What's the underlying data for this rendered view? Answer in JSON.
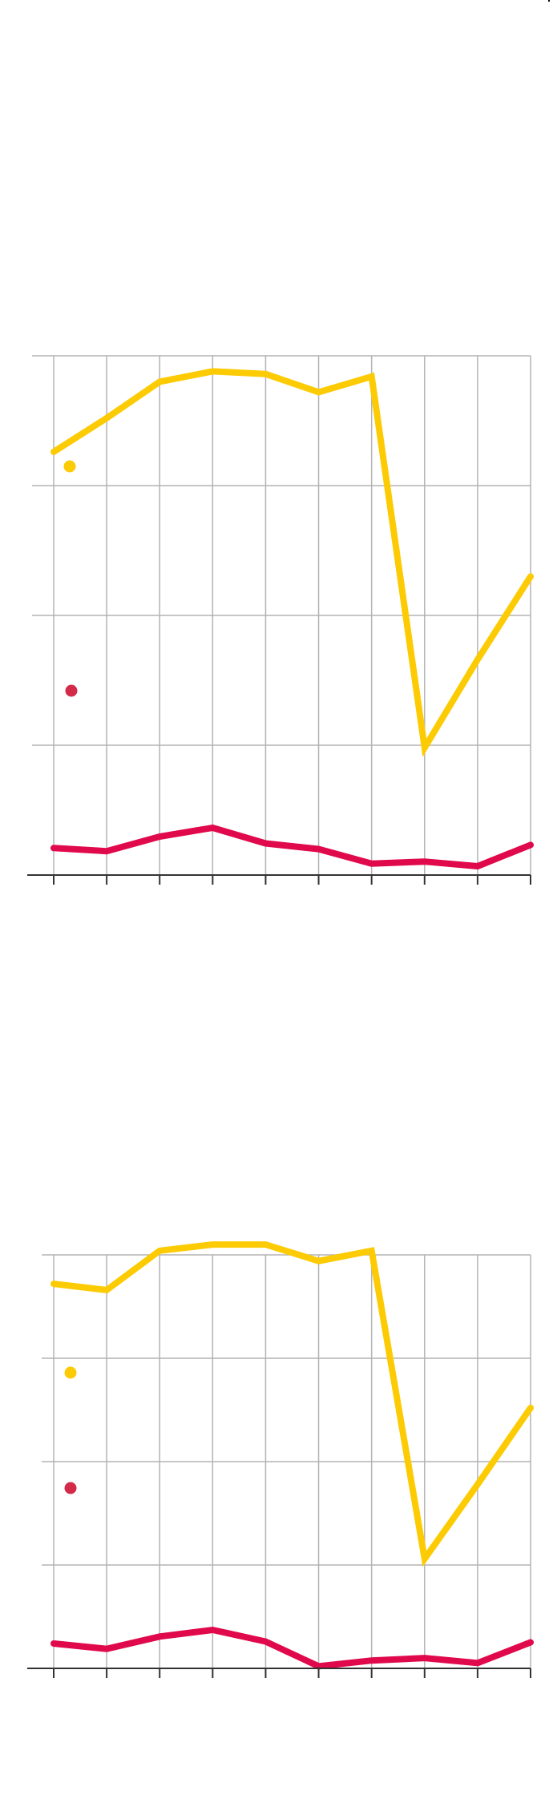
{
  "colors": {
    "series_a": "#fccb04",
    "series_b": "#e0094b",
    "legend_b": "#d42a4a",
    "grid": "#b3b3b3",
    "axis": "#333333"
  },
  "chart_data": [
    {
      "type": "line",
      "title": "",
      "xlabel": "",
      "ylabel": "",
      "x": [
        1,
        2,
        3,
        4,
        5,
        6,
        7,
        8,
        9,
        10
      ],
      "ylim": [
        0,
        100
      ],
      "grid": true,
      "legend": "left",
      "series": [
        {
          "values": [
            81.5,
            88,
            95,
            97,
            96.5,
            93,
            96,
            24.5,
            41.5,
            57.5
          ]
        },
        {
          "values": [
            5.2,
            4.6,
            7.4,
            9.1,
            6.1,
            5,
            2.2,
            2.6,
            1.7,
            5.8
          ]
        }
      ]
    },
    {
      "type": "line",
      "title": "",
      "xlabel": "",
      "ylabel": "",
      "x": [
        1,
        2,
        3,
        4,
        5,
        6,
        7,
        8,
        9,
        10
      ],
      "ylim": [
        0,
        100
      ],
      "grid": true,
      "legend": "left",
      "series": [
        {
          "values": [
            93,
            91.5,
            101,
            102.5,
            102.5,
            98.5,
            101,
            26.5,
            44.5,
            63
          ]
        },
        {
          "values": [
            6,
            4.7,
            7.7,
            9.3,
            6.5,
            0.5,
            1.9,
            2.5,
            1.3,
            6.3
          ]
        }
      ]
    }
  ]
}
